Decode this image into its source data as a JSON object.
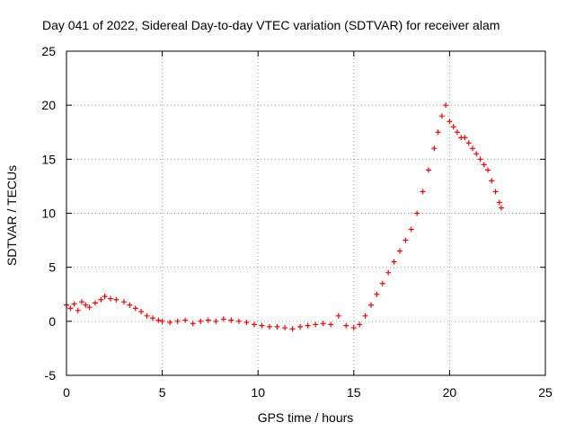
{
  "chart_data": {
    "type": "scatter",
    "title": "Day 041 of 2022, Sidereal Day-to-day VTEC variation (SDTVAR) for receiver alam",
    "xlabel": "GPS time / hours",
    "ylabel": "SDTVAR / TECUs",
    "xlim": [
      0,
      25
    ],
    "ylim": [
      -5,
      25
    ],
    "xticks": [
      0,
      5,
      10,
      15,
      20,
      25
    ],
    "yticks": [
      -5,
      0,
      5,
      10,
      15,
      20,
      25
    ],
    "xtick_labels": [
      "0",
      "5",
      "10",
      "15",
      "20",
      "25"
    ],
    "ytick_labels": [
      "-5",
      "0",
      "5",
      "10",
      "15",
      "20",
      "25"
    ],
    "grid": true,
    "marker": "+",
    "series": [
      {
        "name": "SDTVAR",
        "color": "#ff0000",
        "x": [
          0.0,
          0.2,
          0.4,
          0.6,
          0.8,
          1.0,
          1.2,
          1.5,
          1.8,
          2.0,
          2.3,
          2.6,
          3.0,
          3.3,
          3.6,
          3.9,
          4.2,
          4.5,
          4.8,
          5.0,
          5.4,
          5.8,
          6.2,
          6.6,
          7.0,
          7.4,
          7.8,
          8.2,
          8.6,
          9.0,
          9.4,
          9.8,
          10.2,
          10.6,
          11.0,
          11.4,
          11.8,
          12.2,
          12.6,
          13.0,
          13.4,
          13.8,
          14.2,
          14.6,
          15.0,
          15.3,
          15.6,
          15.9,
          16.2,
          16.5,
          16.8,
          17.1,
          17.4,
          17.7,
          18.0,
          18.3,
          18.6,
          18.9,
          19.2,
          19.4,
          19.6,
          19.8,
          20.0,
          20.2,
          20.4,
          20.6,
          20.8,
          21.0,
          21.2,
          21.4,
          21.6,
          21.8,
          22.0,
          22.2,
          22.4,
          22.6,
          22.7
        ],
        "y": [
          1.5,
          1.2,
          1.6,
          1.0,
          1.8,
          1.5,
          1.3,
          1.7,
          2.0,
          2.3,
          2.1,
          2.0,
          1.8,
          1.5,
          1.2,
          0.9,
          0.5,
          0.3,
          0.1,
          0.0,
          -0.1,
          0.0,
          0.1,
          -0.2,
          0.0,
          0.1,
          0.0,
          0.2,
          0.1,
          0.0,
          -0.1,
          -0.3,
          -0.4,
          -0.5,
          -0.5,
          -0.6,
          -0.7,
          -0.5,
          -0.4,
          -0.3,
          -0.2,
          -0.3,
          0.5,
          -0.4,
          -0.6,
          -0.3,
          0.5,
          1.5,
          2.5,
          3.5,
          4.5,
          5.5,
          6.5,
          7.5,
          8.5,
          10.0,
          12.0,
          14.0,
          16.0,
          17.5,
          19.0,
          20.0,
          18.5,
          18.0,
          17.5,
          17.0,
          17.0,
          16.5,
          16.0,
          15.5,
          15.0,
          14.5,
          14.0,
          13.0,
          12.0,
          11.0,
          10.5
        ]
      }
    ]
  }
}
